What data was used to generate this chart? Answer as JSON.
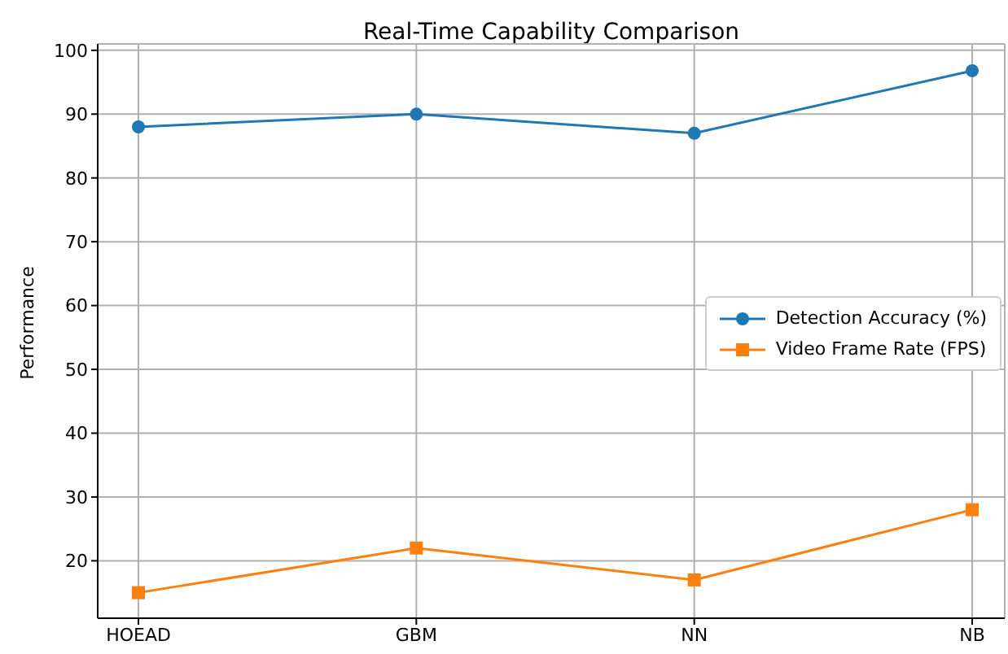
{
  "chart_data": {
    "type": "line",
    "title": "Real-Time Capability Comparison",
    "ylabel": "Performance",
    "categories": [
      "HOEAD",
      "GBM",
      "NN",
      "NB"
    ],
    "series": [
      {
        "name": "Detection Accuracy (%)",
        "color": "#1f77b4",
        "values": [
          88,
          90,
          87,
          96.8
        ],
        "marker": "circle"
      },
      {
        "name": "Video Frame Rate (FPS)",
        "color": "#ff7f0e",
        "values": [
          15,
          22,
          17,
          28
        ],
        "marker": "square"
      }
    ],
    "ylim": [
      11,
      101
    ],
    "yticks": [
      20,
      30,
      40,
      50,
      60,
      70,
      80,
      90,
      100
    ],
    "grid": true,
    "legend": "right",
    "line_style": "solid"
  }
}
